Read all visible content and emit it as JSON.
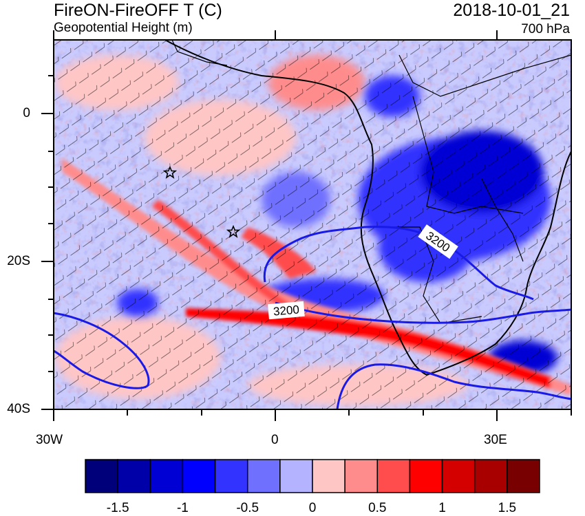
{
  "header": {
    "title_left": "FireON-FireOFF T (C)",
    "subtitle_left": "Geopotential Height (m)",
    "title_right": "2018-10-01_21",
    "subtitle_right": "700 hPa"
  },
  "map": {
    "region": "South Atlantic and southern Africa",
    "lon_range": [
      -30,
      40
    ],
    "lat_range": [
      -40,
      10
    ],
    "y_tick_labels": [
      "0",
      "20S",
      "40S"
    ],
    "x_tick_labels": [
      "30W",
      "0",
      "30E"
    ],
    "contour_labels": [
      "3200",
      "3200"
    ],
    "contour_color": "#1a1ae6",
    "markers": [
      "star-marker",
      "star-marker"
    ]
  },
  "colorbar": {
    "colors": [
      "#00007a",
      "#0000a8",
      "#0000d4",
      "#0000ff",
      "#3333ff",
      "#7070ff",
      "#b3b3ff",
      "#ffc6c6",
      "#ff8c8c",
      "#ff4c4c",
      "#ff0000",
      "#d40000",
      "#a80000",
      "#780000"
    ],
    "labels": [
      "-1.5",
      "-1",
      "-0.5",
      "0",
      "0.5",
      "1",
      "1.5"
    ]
  }
}
